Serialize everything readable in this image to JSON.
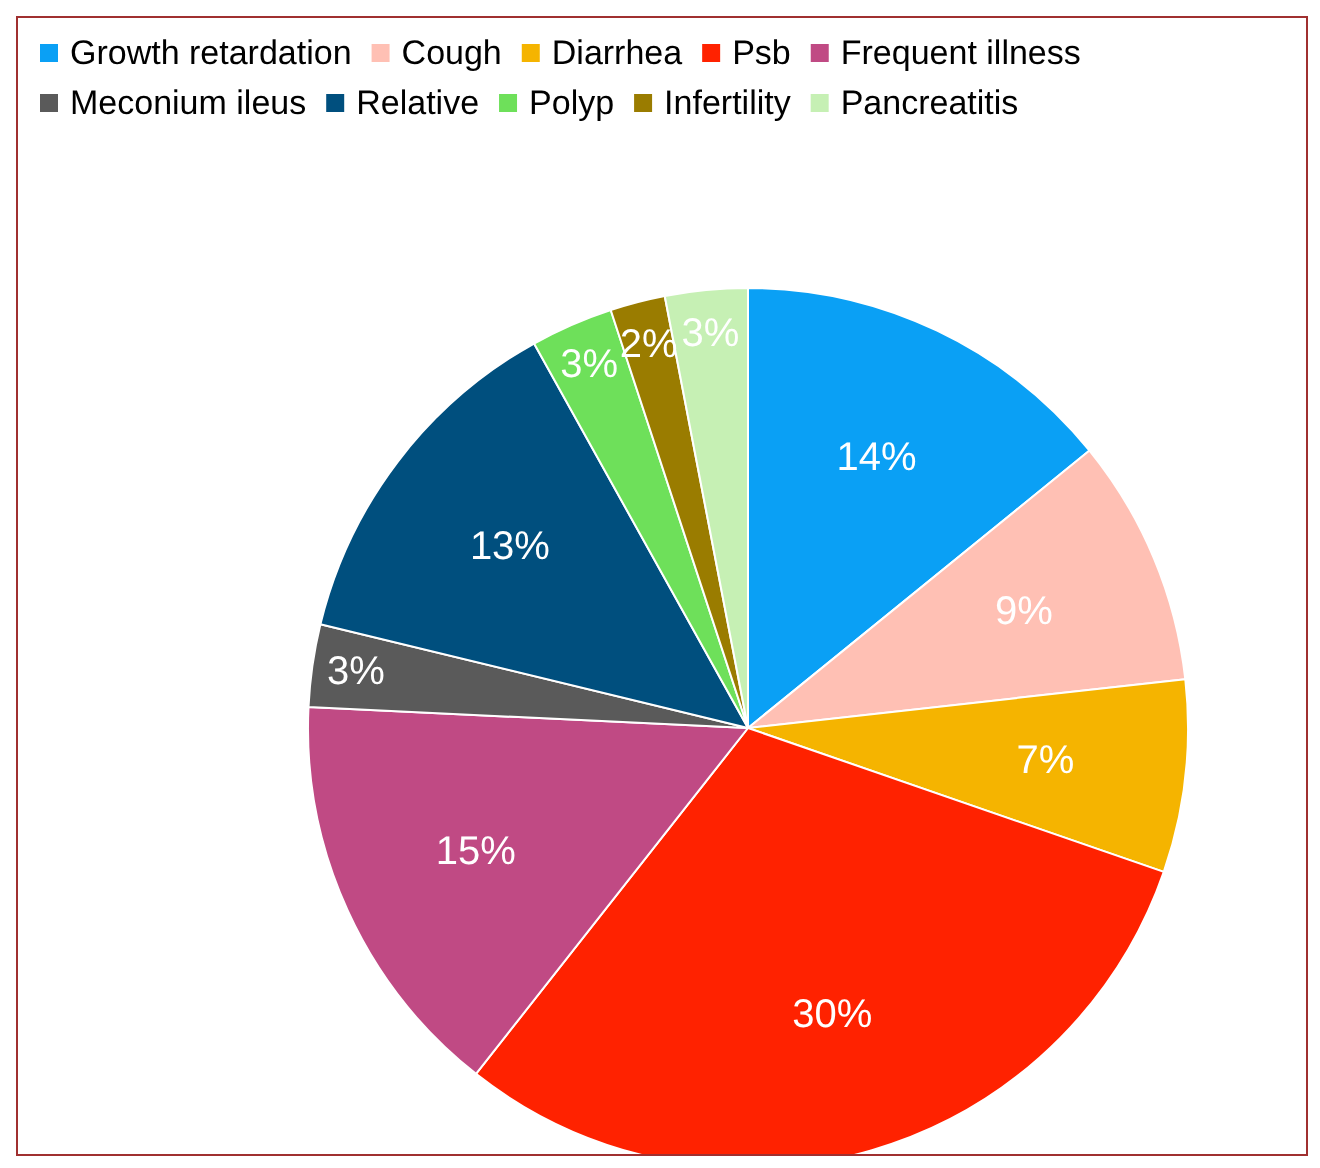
{
  "chart_data": {
    "type": "pie",
    "categories": [
      "Growth retardation",
      "Cough",
      "Diarrhea",
      "Psb",
      "Frequent illness",
      "Meconium ileus",
      "Relative",
      "Polyp",
      "Infertility",
      "Pancreatitis"
    ],
    "values": [
      14,
      9,
      7,
      30,
      15,
      3,
      13,
      3,
      2,
      3
    ],
    "value_labels": [
      "14%",
      "9%",
      "7%",
      "30%",
      "15%",
      "3%",
      "13%",
      "3%",
      "2%",
      "3%"
    ],
    "colors": [
      "#0aa0f5",
      "#ffc0b4",
      "#f5b400",
      "#ff2200",
      "#c04a84",
      "#5a5a5a",
      "#004f7e",
      "#6ee05a",
      "#9a7c00",
      "#c6f0b4"
    ],
    "legend": "top left"
  }
}
